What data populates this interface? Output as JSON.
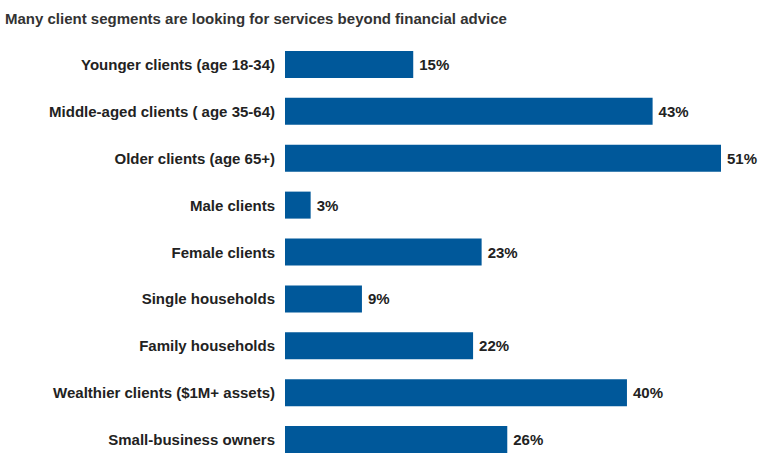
{
  "chart_data": {
    "type": "bar",
    "orientation": "horizontal",
    "title": "Many client segments are looking for services beyond financial advice",
    "categories": [
      "Younger clients (age 18-34)",
      "Middle-aged clients ( age 35-64)",
      "Older clients (age 65+)",
      "Male clients",
      "Female clients",
      "Single households",
      "Family households",
      "Wealthier clients ($1M+ assets)",
      "Small-business owners"
    ],
    "values": [
      15,
      43,
      51,
      3,
      23,
      9,
      22,
      40,
      26
    ],
    "value_labels": [
      "15%",
      "43%",
      "51%",
      "3%",
      "23%",
      "9%",
      "22%",
      "40%",
      "26%"
    ],
    "color": "#00589a",
    "xlim": [
      0,
      51
    ],
    "data_labels": true,
    "tick_labels": "y",
    "grid": false
  }
}
